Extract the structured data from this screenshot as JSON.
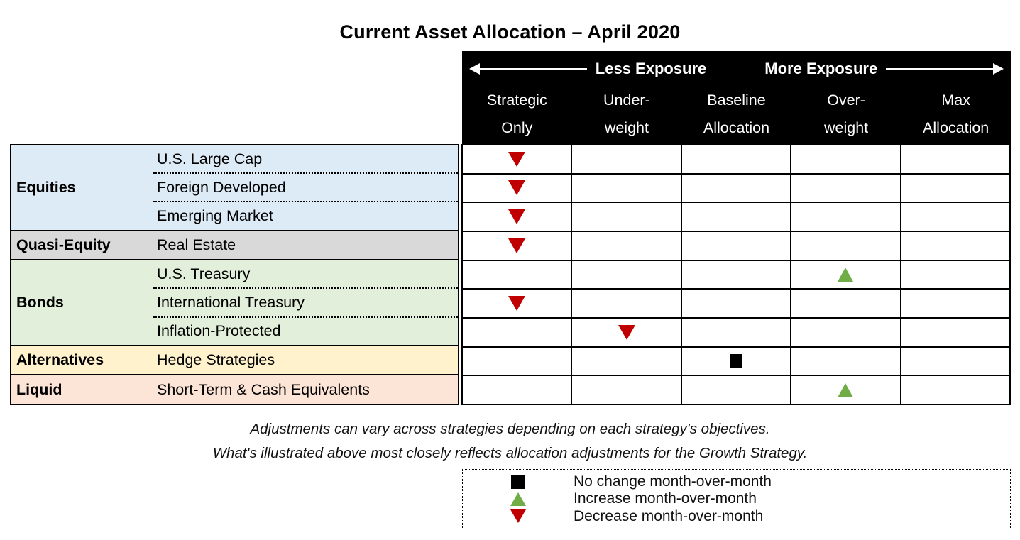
{
  "title": "Current Asset Allocation – April 2020",
  "header": {
    "less_label": "Less Exposure",
    "more_label": "More Exposure",
    "columns": [
      {
        "lines": [
          "Strategic",
          "Only"
        ]
      },
      {
        "lines": [
          "Under-",
          "weight"
        ]
      },
      {
        "lines": [
          "Baseline",
          "Allocation"
        ]
      },
      {
        "lines": [
          "Over-",
          "weight"
        ]
      },
      {
        "lines": [
          "Max",
          "Allocation"
        ]
      }
    ]
  },
  "colors": {
    "decrease": "#C00000",
    "increase": "#70AD47",
    "no_change": "#000000",
    "equities_bg": "#DDEBF7",
    "quasi_equity_bg": "#D9D9D9",
    "bonds_bg": "#E2EFDA",
    "alternatives_bg": "#FFF2CC",
    "liquid_bg": "#FCE4D6"
  },
  "table": {
    "categories": [
      {
        "label": "Equities",
        "color": "#DDEBF7",
        "assets": [
          {
            "name": "U.S. Large Cap",
            "marker": "decrease",
            "col": 0
          },
          {
            "name": "Foreign Developed",
            "marker": "decrease",
            "col": 0
          },
          {
            "name": "Emerging Market",
            "marker": "decrease",
            "col": 0
          }
        ]
      },
      {
        "label": "Quasi-Equity",
        "color": "#D9D9D9",
        "assets": [
          {
            "name": "Real Estate",
            "marker": "decrease",
            "col": 0
          }
        ]
      },
      {
        "label": "Bonds",
        "color": "#E2EFDA",
        "assets": [
          {
            "name": "U.S. Treasury",
            "marker": "increase",
            "col": 3
          },
          {
            "name": "International Treasury",
            "marker": "decrease",
            "col": 0
          },
          {
            "name": "Inflation-Protected",
            "marker": "decrease",
            "col": 1
          }
        ]
      },
      {
        "label": "Alternatives",
        "color": "#FFF2CC",
        "assets": [
          {
            "name": "Hedge Strategies",
            "marker": "no_change",
            "col": 2
          }
        ]
      },
      {
        "label": "Liquid",
        "color": "#FCE4D6",
        "assets": [
          {
            "name": "Short-Term & Cash Equivalents",
            "marker": "increase",
            "col": 3
          }
        ]
      }
    ]
  },
  "footnotes": [
    "Adjustments can vary across strategies depending on each strategy's objectives.",
    "What's illustrated above most closely reflects allocation adjustments for the Growth Strategy."
  ],
  "legend": {
    "items": [
      {
        "icon": "no_change",
        "label": "No change month-over-month"
      },
      {
        "icon": "increase",
        "label": "Increase month-over-month"
      },
      {
        "icon": "decrease",
        "label": "Decrease month-over-month"
      }
    ]
  },
  "chart_data": {
    "type": "table",
    "title": "Current Asset Allocation – April 2020",
    "columns": [
      "Strategic Only",
      "Under-weight",
      "Baseline Allocation",
      "Over-weight",
      "Max Allocation"
    ],
    "rows": [
      {
        "category": "Equities",
        "asset": "U.S. Large Cap",
        "position": "Strategic Only",
        "change": "decrease"
      },
      {
        "category": "Equities",
        "asset": "Foreign Developed",
        "position": "Strategic Only",
        "change": "decrease"
      },
      {
        "category": "Equities",
        "asset": "Emerging Market",
        "position": "Strategic Only",
        "change": "decrease"
      },
      {
        "category": "Quasi-Equity",
        "asset": "Real Estate",
        "position": "Strategic Only",
        "change": "decrease"
      },
      {
        "category": "Bonds",
        "asset": "U.S. Treasury",
        "position": "Over-weight",
        "change": "increase"
      },
      {
        "category": "Bonds",
        "asset": "International Treasury",
        "position": "Strategic Only",
        "change": "decrease"
      },
      {
        "category": "Bonds",
        "asset": "Inflation-Protected",
        "position": "Under-weight",
        "change": "decrease"
      },
      {
        "category": "Alternatives",
        "asset": "Hedge Strategies",
        "position": "Baseline Allocation",
        "change": "no_change"
      },
      {
        "category": "Liquid",
        "asset": "Short-Term & Cash Equivalents",
        "position": "Over-weight",
        "change": "increase"
      }
    ],
    "legend_position": "bottom"
  }
}
